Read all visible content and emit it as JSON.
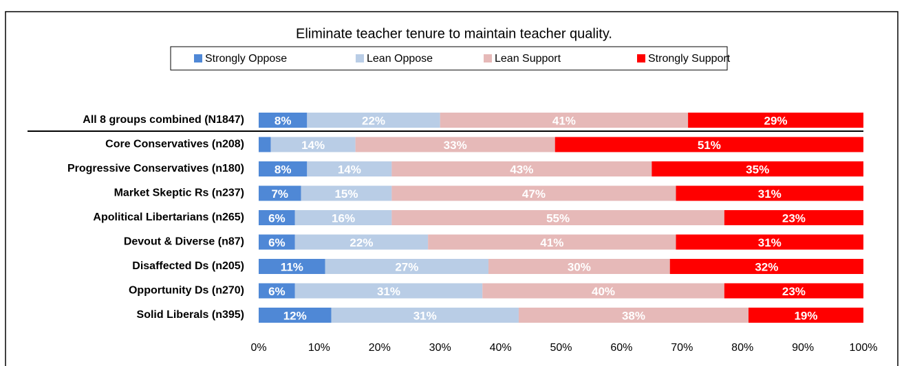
{
  "chart_data": {
    "type": "stacked_bar_horizontal",
    "title": "Eliminate teacher tenure to maintain teacher quality.",
    "categories": [
      "All 8 groups combined (N1847)",
      "Core Conservatives (n208)",
      "Progressive Conservatives (n180)",
      "Market Skeptic Rs (n237)",
      "Apolitical Libertarians (n265)",
      "Devout & Diverse (n87)",
      "Disaffected Ds (n205)",
      "Opportunity Ds (n270)",
      "Solid Liberals (n395)"
    ],
    "series": [
      {
        "name": "Strongly Oppose",
        "color": "#4f88d6",
        "values": [
          8,
          2,
          8,
          7,
          6,
          6,
          11,
          6,
          12
        ],
        "value_labels": [
          "8%",
          null,
          "8%",
          "7%",
          "6%",
          "6%",
          "11%",
          "6%",
          "12%"
        ]
      },
      {
        "name": "Lean Oppose",
        "color": "#b9cde6",
        "values": [
          22,
          14,
          14,
          15,
          16,
          22,
          27,
          31,
          31
        ],
        "value_labels": [
          "22%",
          "14%",
          "14%",
          "15%",
          "16%",
          "22%",
          "27%",
          "31%",
          "31%"
        ]
      },
      {
        "name": "Lean Support",
        "color": "#e6b9b8",
        "values": [
          41,
          33,
          43,
          47,
          55,
          41,
          30,
          40,
          38
        ],
        "value_labels": [
          "41%",
          "33%",
          "43%",
          "47%",
          "55%",
          "41%",
          "30%",
          "40%",
          "38%"
        ]
      },
      {
        "name": "Strongly Support",
        "color": "#ff0000",
        "values": [
          29,
          51,
          35,
          31,
          23,
          31,
          32,
          23,
          19
        ],
        "value_labels": [
          "29%",
          "51%",
          "35%",
          "31%",
          "23%",
          "31%",
          "32%",
          "23%",
          "19%"
        ]
      }
    ],
    "xlim": [
      0,
      100
    ],
    "xticks": [
      {
        "value": 0,
        "label": "0%"
      },
      {
        "value": 10,
        "label": "10%"
      },
      {
        "value": 20,
        "label": "20%"
      },
      {
        "value": 30,
        "label": "30%"
      },
      {
        "value": 40,
        "label": "40%"
      },
      {
        "value": 50,
        "label": "50%"
      },
      {
        "value": 60,
        "label": "60%"
      },
      {
        "value": 70,
        "label": "70%"
      },
      {
        "value": 80,
        "label": "80%"
      },
      {
        "value": 90,
        "label": "90%"
      },
      {
        "value": 100,
        "label": "100%"
      }
    ],
    "legend": "top"
  }
}
